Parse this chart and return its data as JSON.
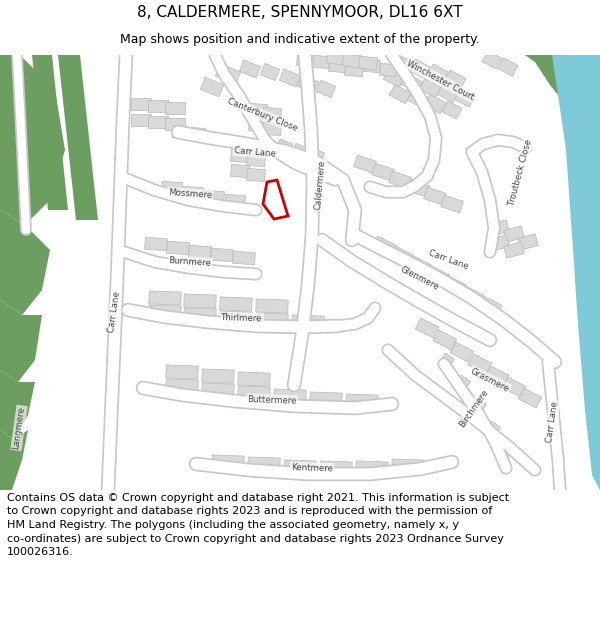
{
  "title": "8, CALDERMERE, SPENNYMOOR, DL16 6XT",
  "subtitle": "Map shows position and indicative extent of the property.",
  "footer_lines": [
    "Contains OS data © Crown copyright and database right 2021. This information is subject",
    "to Crown copyright and database rights 2023 and is reproduced with the permission of",
    "HM Land Registry. The polygons (including the associated geometry, namely x, y",
    "co-ordinates) are subject to Crown copyright and database rights 2023 Ordnance Survey",
    "100026316."
  ],
  "bg_color": "#ffffff",
  "building_fill": "#d9d9d9",
  "building_stroke": "#b8b8b8",
  "green_color": "#6b9e60",
  "water_color": "#7ecad8",
  "highlight_fill": "#ffffff",
  "highlight_stroke": "#dd0000",
  "road_fill": "#ffffff",
  "road_stroke": "#c8c8c8",
  "label_color": "#444444",
  "title_fontsize": 11,
  "subtitle_fontsize": 9,
  "footer_fontsize": 8
}
